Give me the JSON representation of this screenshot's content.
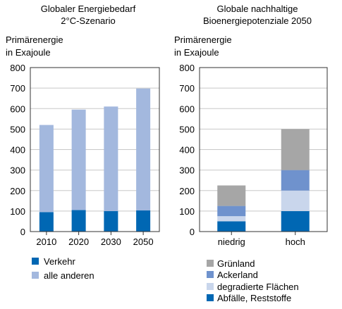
{
  "colors": {
    "verkehr": "#0067b3",
    "alle_anderen": "#a3b8de",
    "gruenland": "#a6a6a6",
    "ackerland": "#6f92cd",
    "degradierte": "#c9d6ec",
    "abfaelle": "#0067b3",
    "grid": "#c8c8c8",
    "axis": "#333333"
  },
  "chart_data": [
    {
      "type": "bar",
      "stacked": true,
      "title_lines": [
        "Globaler Energiebedarf",
        "2°C-Szenario"
      ],
      "ylabel_lines": [
        "Primärenergie",
        "in Exajoule"
      ],
      "categories": [
        "2010",
        "2020",
        "2030",
        "2050"
      ],
      "ylim": [
        0,
        800
      ],
      "yticks": [
        "0",
        "100",
        "200",
        "300",
        "400",
        "500",
        "600",
        "700",
        "800"
      ],
      "grid": true,
      "legend_placement": "bottom",
      "series": [
        {
          "name": "Verkehr",
          "values": [
            95,
            105,
            100,
            103
          ]
        },
        {
          "name": "alle anderen",
          "values": [
            425,
            490,
            510,
            595
          ]
        }
      ]
    },
    {
      "type": "bar",
      "stacked": true,
      "title_lines": [
        "Globale nachhaltige",
        "Bioenergiepotenziale 2050"
      ],
      "ylabel_lines": [
        "Primärenergie",
        "in Exajoule"
      ],
      "categories": [
        "niedrig",
        "hoch"
      ],
      "ylim": [
        0,
        800
      ],
      "yticks": [
        "0",
        "100",
        "200",
        "300",
        "400",
        "500",
        "600",
        "700",
        "800"
      ],
      "grid": true,
      "legend_placement": "bottom",
      "series": [
        {
          "name": "Abfälle, Reststoffe",
          "values": [
            50,
            100
          ]
        },
        {
          "name": "degradierte Flächen",
          "values": [
            25,
            100
          ]
        },
        {
          "name": "Ackerland",
          "values": [
            50,
            100
          ]
        },
        {
          "name": "Grünland",
          "values": [
            100,
            200
          ]
        }
      ]
    }
  ]
}
